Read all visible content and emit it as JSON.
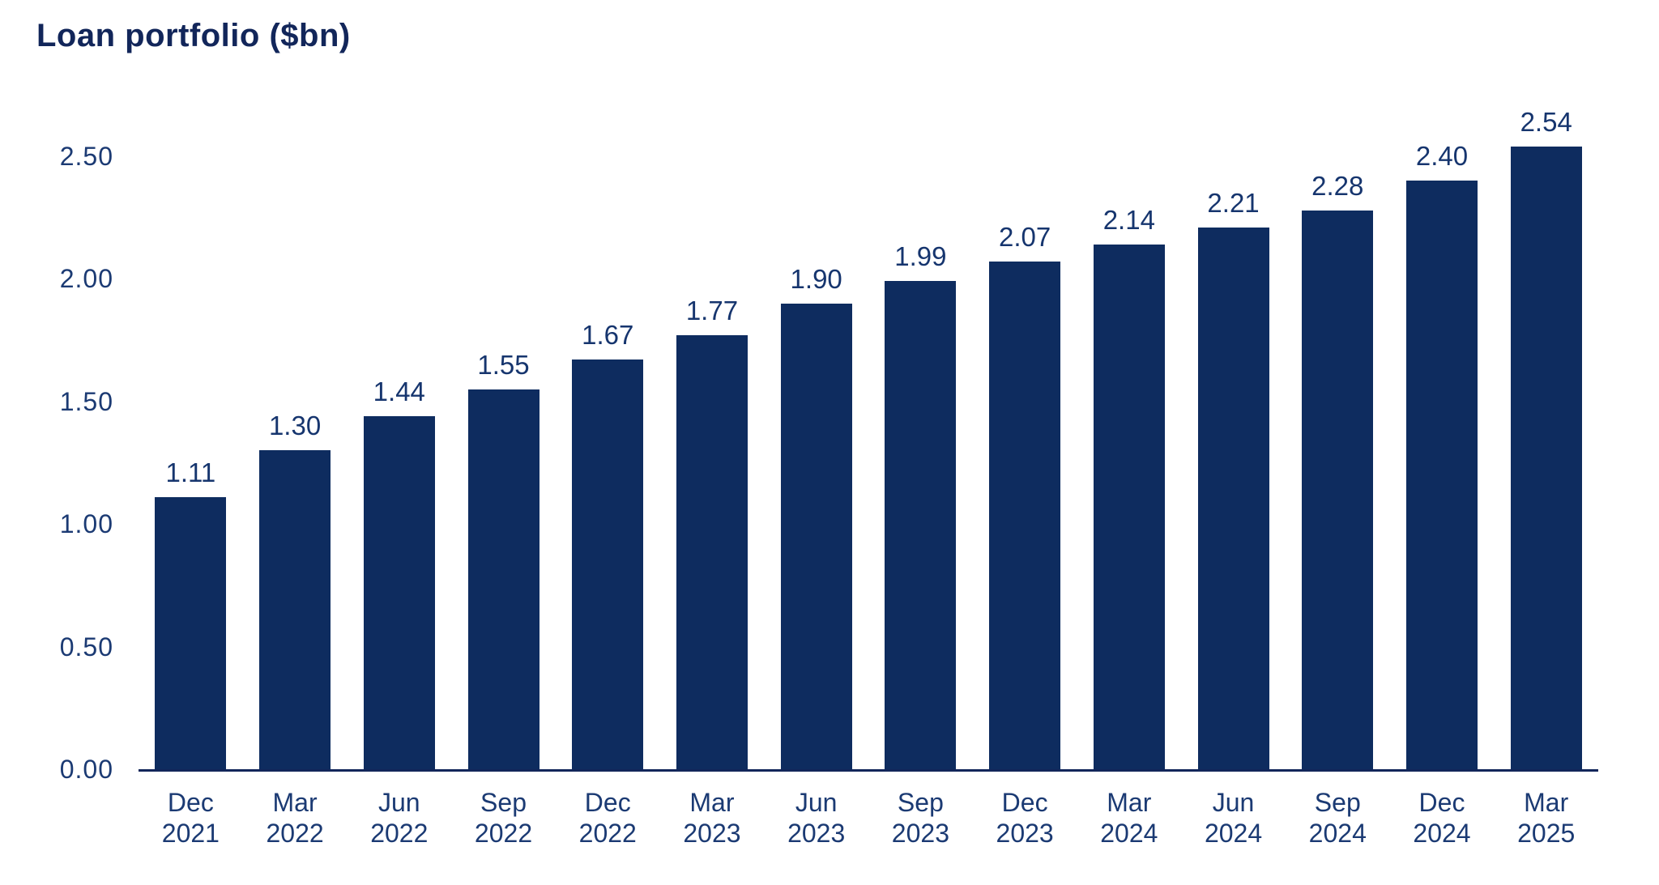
{
  "title": "Loan portfolio ($bn)",
  "colors": {
    "background": "#ffffff",
    "bar": "#0e2c5f",
    "title_text": "#12265a",
    "axis_text": "#1b3a73",
    "value_text": "#16356e",
    "baseline": "#12265a"
  },
  "chart_data": {
    "type": "bar",
    "title": "Loan portfolio ($bn)",
    "categories": [
      "Dec 2021",
      "Mar 2022",
      "Jun 2022",
      "Sep 2022",
      "Dec 2022",
      "Mar 2023",
      "Jun 2023",
      "Sep 2023",
      "Dec 2023",
      "Mar 2024",
      "Jun 2024",
      "Sep 2024",
      "Dec 2024",
      "Mar 2025"
    ],
    "values": [
      1.11,
      1.3,
      1.44,
      1.55,
      1.67,
      1.77,
      1.9,
      1.99,
      2.07,
      2.14,
      2.21,
      2.28,
      2.4,
      2.54
    ],
    "value_labels": [
      "1.11",
      "1.30",
      "1.44",
      "1.55",
      "1.67",
      "1.77",
      "1.90",
      "1.99",
      "2.07",
      "2.14",
      "2.21",
      "2.28",
      "2.40",
      "2.54"
    ],
    "y_ticks": [
      "0.00",
      "0.50",
      "1.00",
      "1.50",
      "2.00",
      "2.50"
    ],
    "y_tick_values": [
      0,
      0.5,
      1.0,
      1.5,
      2.0,
      2.5
    ],
    "ylim": [
      0,
      2.5
    ],
    "xlabel": "",
    "ylabel": "",
    "grid": false,
    "legend": false,
    "bar_labels_position": "above"
  }
}
